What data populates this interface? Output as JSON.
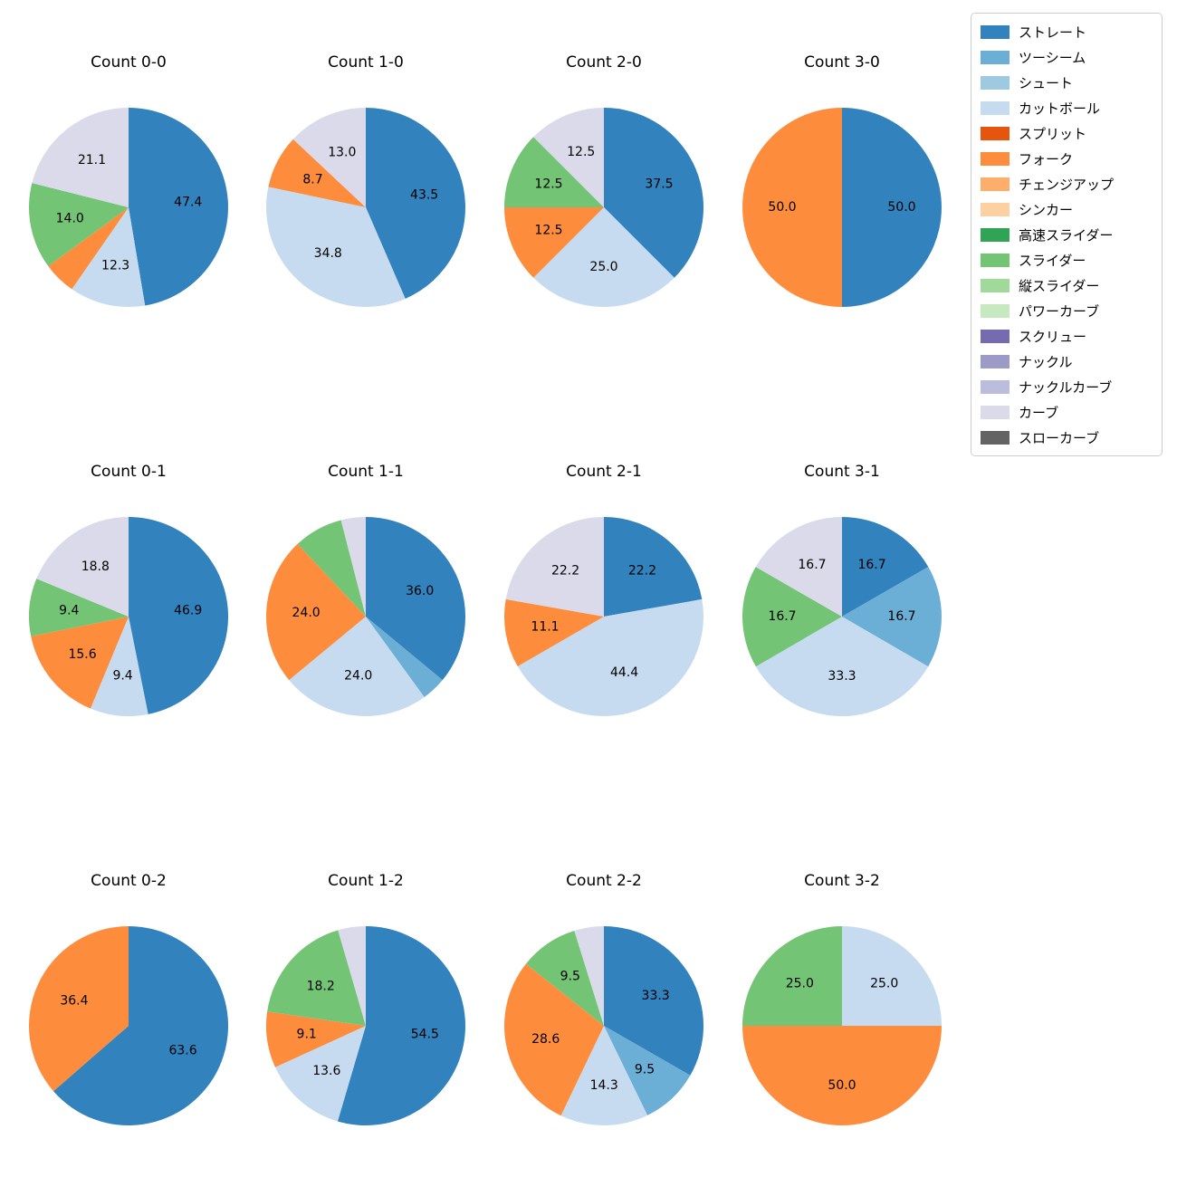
{
  "page": {
    "background": "#ffffff"
  },
  "legend": {
    "position": "upper right",
    "items": [
      {
        "label": "ストレート",
        "color": "#3182bd"
      },
      {
        "label": "ツーシーム",
        "color": "#6baed6"
      },
      {
        "label": "シュート",
        "color": "#9ecae1"
      },
      {
        "label": "カットボール",
        "color": "#c6dbef"
      },
      {
        "label": "スプリット",
        "color": "#e6550d"
      },
      {
        "label": "フォーク",
        "color": "#fd8d3c"
      },
      {
        "label": "チェンジアップ",
        "color": "#fdae6b"
      },
      {
        "label": "シンカー",
        "color": "#fdd0a2"
      },
      {
        "label": "高速スライダー",
        "color": "#31a354"
      },
      {
        "label": "スライダー",
        "color": "#74c476"
      },
      {
        "label": "縦スライダー",
        "color": "#a1d99b"
      },
      {
        "label": "パワーカーブ",
        "color": "#c7e9c0"
      },
      {
        "label": "スクリュー",
        "color": "#756bb1"
      },
      {
        "label": "ナックル",
        "color": "#9e9ac8"
      },
      {
        "label": "ナックルカーブ",
        "color": "#bcbddc"
      },
      {
        "label": "カーブ",
        "color": "#dadaeb"
      },
      {
        "label": "スローカーブ",
        "color": "#636363"
      }
    ]
  },
  "chart_data": [
    {
      "type": "pie",
      "title": "Count 0-0",
      "start_angle_deg": 90,
      "direction": "clockwise",
      "slices": [
        {
          "name": "ストレート",
          "value": 47.4,
          "label": "47.4"
        },
        {
          "name": "カットボール",
          "value": 12.3,
          "label": "12.3"
        },
        {
          "name": "フォーク",
          "value": 5.3,
          "label": ""
        },
        {
          "name": "スライダー",
          "value": 14.0,
          "label": "14.0"
        },
        {
          "name": "カーブ",
          "value": 21.1,
          "label": "21.1"
        }
      ]
    },
    {
      "type": "pie",
      "title": "Count 1-0",
      "start_angle_deg": 90,
      "direction": "clockwise",
      "slices": [
        {
          "name": "ストレート",
          "value": 43.5,
          "label": "43.5"
        },
        {
          "name": "カットボール",
          "value": 34.8,
          "label": "34.8"
        },
        {
          "name": "フォーク",
          "value": 8.7,
          "label": "8.7"
        },
        {
          "name": "カーブ",
          "value": 13.0,
          "label": "13.0"
        }
      ]
    },
    {
      "type": "pie",
      "title": "Count 2-0",
      "start_angle_deg": 90,
      "direction": "clockwise",
      "slices": [
        {
          "name": "ストレート",
          "value": 37.5,
          "label": "37.5"
        },
        {
          "name": "カットボール",
          "value": 25.0,
          "label": "25.0"
        },
        {
          "name": "フォーク",
          "value": 12.5,
          "label": "12.5"
        },
        {
          "name": "スライダー",
          "value": 12.5,
          "label": "12.5"
        },
        {
          "name": "カーブ",
          "value": 12.5,
          "label": "12.5"
        }
      ]
    },
    {
      "type": "pie",
      "title": "Count 3-0",
      "start_angle_deg": 90,
      "direction": "clockwise",
      "slices": [
        {
          "name": "ストレート",
          "value": 50.0,
          "label": "50.0"
        },
        {
          "name": "フォーク",
          "value": 50.0,
          "label": "50.0"
        }
      ]
    },
    {
      "type": "pie",
      "title": "Count 0-1",
      "start_angle_deg": 90,
      "direction": "clockwise",
      "slices": [
        {
          "name": "ストレート",
          "value": 46.9,
          "label": "46.9"
        },
        {
          "name": "カットボール",
          "value": 9.4,
          "label": "9.4"
        },
        {
          "name": "フォーク",
          "value": 15.6,
          "label": "15.6"
        },
        {
          "name": "スライダー",
          "value": 9.4,
          "label": "9.4"
        },
        {
          "name": "カーブ",
          "value": 18.8,
          "label": "18.8"
        }
      ]
    },
    {
      "type": "pie",
      "title": "Count 1-1",
      "start_angle_deg": 90,
      "direction": "clockwise",
      "slices": [
        {
          "name": "ストレート",
          "value": 36.0,
          "label": "36.0"
        },
        {
          "name": "ツーシーム",
          "value": 4.0,
          "label": ""
        },
        {
          "name": "カットボール",
          "value": 24.0,
          "label": "24.0"
        },
        {
          "name": "フォーク",
          "value": 24.0,
          "label": "24.0"
        },
        {
          "name": "スライダー",
          "value": 8.0,
          "label": ""
        },
        {
          "name": "カーブ",
          "value": 4.0,
          "label": ""
        }
      ]
    },
    {
      "type": "pie",
      "title": "Count 2-1",
      "start_angle_deg": 90,
      "direction": "clockwise",
      "slices": [
        {
          "name": "ストレート",
          "value": 22.2,
          "label": "22.2"
        },
        {
          "name": "カットボール",
          "value": 44.4,
          "label": "44.4"
        },
        {
          "name": "フォーク",
          "value": 11.1,
          "label": "11.1"
        },
        {
          "name": "カーブ",
          "value": 22.2,
          "label": "22.2"
        }
      ]
    },
    {
      "type": "pie",
      "title": "Count 3-1",
      "start_angle_deg": 90,
      "direction": "clockwise",
      "slices": [
        {
          "name": "ストレート",
          "value": 16.7,
          "label": "16.7"
        },
        {
          "name": "ツーシーム",
          "value": 16.7,
          "label": "16.7"
        },
        {
          "name": "カットボール",
          "value": 33.3,
          "label": "33.3"
        },
        {
          "name": "スライダー",
          "value": 16.7,
          "label": "16.7"
        },
        {
          "name": "カーブ",
          "value": 16.7,
          "label": "16.7"
        }
      ]
    },
    {
      "type": "pie",
      "title": "Count 0-2",
      "start_angle_deg": 90,
      "direction": "clockwise",
      "slices": [
        {
          "name": "ストレート",
          "value": 63.6,
          "label": "63.6"
        },
        {
          "name": "フォーク",
          "value": 36.4,
          "label": "36.4"
        }
      ]
    },
    {
      "type": "pie",
      "title": "Count 1-2",
      "start_angle_deg": 90,
      "direction": "clockwise",
      "slices": [
        {
          "name": "ストレート",
          "value": 54.5,
          "label": "54.5"
        },
        {
          "name": "カットボール",
          "value": 13.6,
          "label": "13.6"
        },
        {
          "name": "フォーク",
          "value": 9.1,
          "label": "9.1"
        },
        {
          "name": "スライダー",
          "value": 18.2,
          "label": "18.2"
        },
        {
          "name": "カーブ",
          "value": 4.5,
          "label": ""
        }
      ]
    },
    {
      "type": "pie",
      "title": "Count 2-2",
      "start_angle_deg": 90,
      "direction": "clockwise",
      "slices": [
        {
          "name": "ストレート",
          "value": 33.3,
          "label": "33.3"
        },
        {
          "name": "ツーシーム",
          "value": 9.5,
          "label": "9.5"
        },
        {
          "name": "カットボール",
          "value": 14.3,
          "label": "14.3"
        },
        {
          "name": "フォーク",
          "value": 28.6,
          "label": "28.6"
        },
        {
          "name": "スライダー",
          "value": 9.5,
          "label": "9.5"
        },
        {
          "name": "カーブ",
          "value": 4.8,
          "label": ""
        }
      ]
    },
    {
      "type": "pie",
      "title": "Count 3-2",
      "start_angle_deg": 90,
      "direction": "clockwise",
      "slices": [
        {
          "name": "カットボール",
          "value": 25.0,
          "label": "25.0"
        },
        {
          "name": "フォーク",
          "value": 50.0,
          "label": "50.0"
        },
        {
          "name": "スライダー",
          "value": 25.0,
          "label": "25.0"
        }
      ]
    }
  ]
}
